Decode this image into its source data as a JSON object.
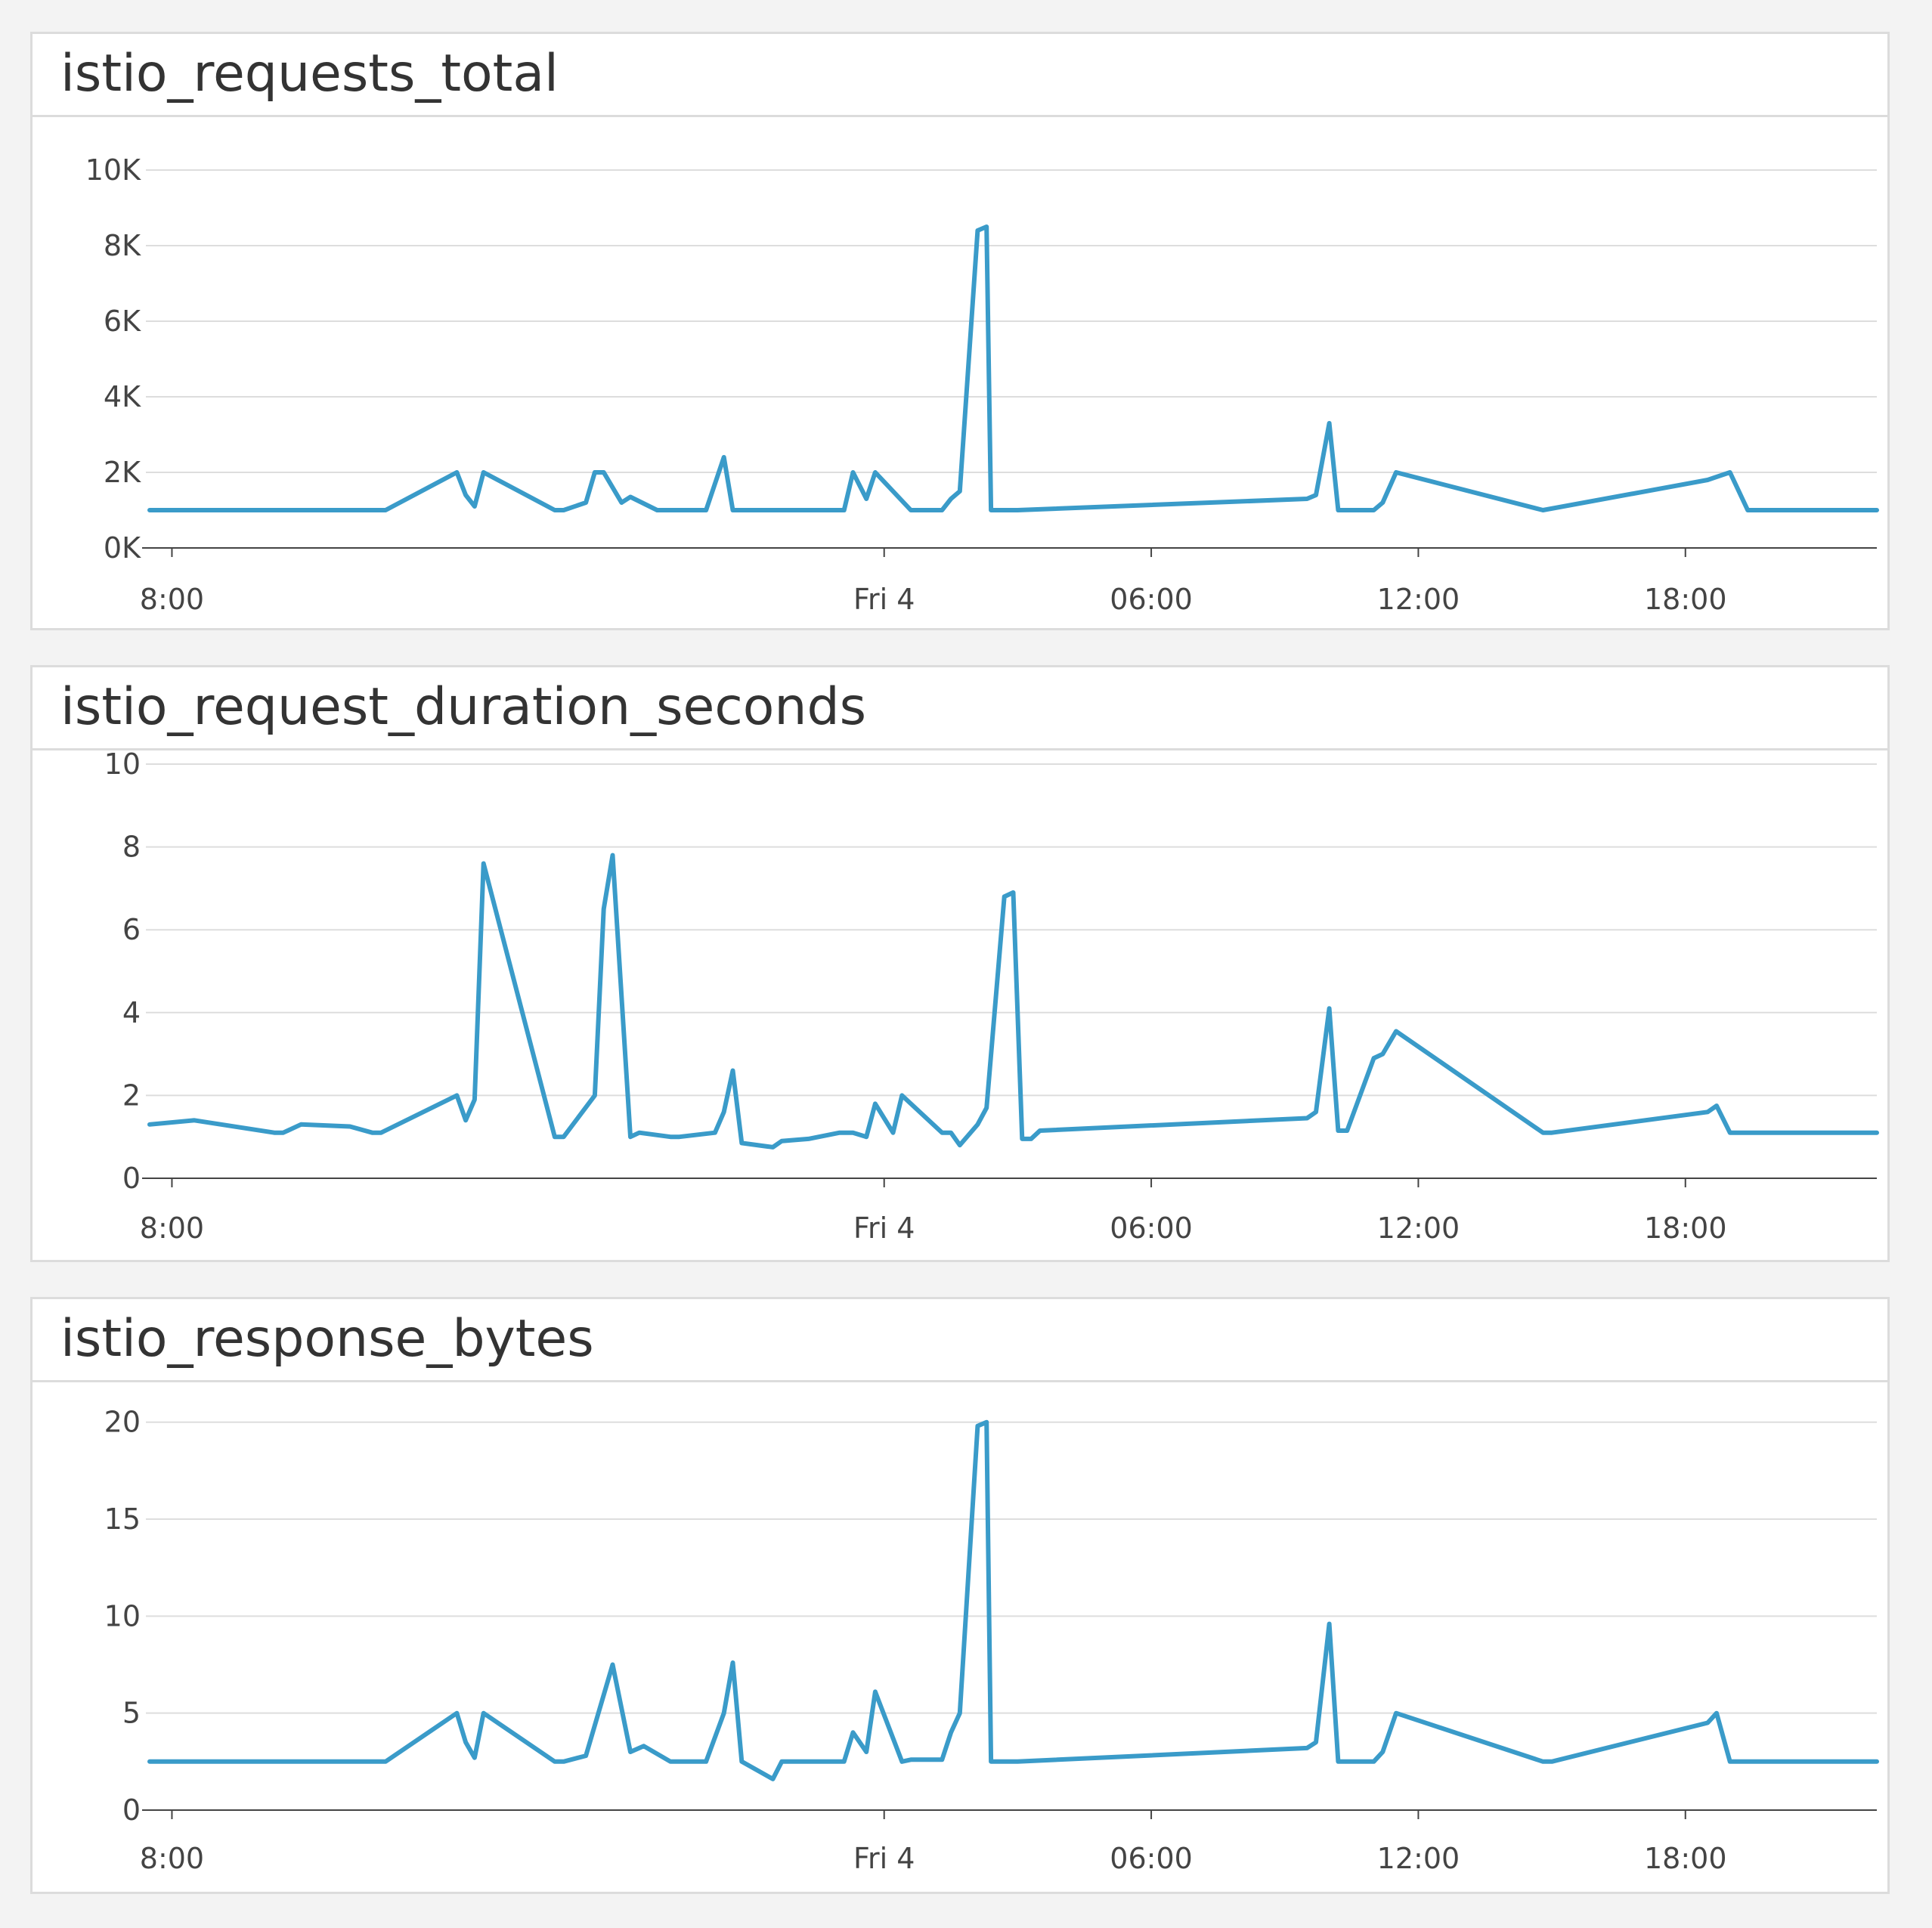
{
  "colors": {
    "line": "#3a9bc9",
    "grid": "#dddddd",
    "axis": "#444444",
    "text": "#333333"
  },
  "chart_data": [
    {
      "type": "line",
      "title": "istio_requests_total",
      "x_tick_labels": [
        "8:00",
        "Fri 4",
        "06:00",
        "12:00",
        "18:00"
      ],
      "x_tick_hours": [
        8,
        24,
        30,
        36,
        42
      ],
      "x_range_hours": [
        7.5,
        46.3
      ],
      "y_tick_labels": [
        "0K",
        "2K",
        "4K",
        "6K",
        "8K",
        "10K"
      ],
      "y_tick_values": [
        0,
        2000,
        4000,
        6000,
        8000,
        10000
      ],
      "ylim": [
        0,
        10000
      ],
      "grid": true,
      "legend": "none",
      "series": [
        {
          "values": [
            [
              7.5,
              1000
            ],
            [
              12.8,
              1000
            ],
            [
              14.4,
              2000
            ],
            [
              14.6,
              1400
            ],
            [
              14.8,
              1100
            ],
            [
              15.0,
              2000
            ],
            [
              16.6,
              1000
            ],
            [
              16.8,
              1000
            ],
            [
              17.3,
              1200
            ],
            [
              17.5,
              2000
            ],
            [
              17.7,
              2000
            ],
            [
              18.1,
              1200
            ],
            [
              18.3,
              1350
            ],
            [
              18.9,
              1000
            ],
            [
              20.0,
              1000
            ],
            [
              20.4,
              2400
            ],
            [
              20.6,
              1000
            ],
            [
              23.1,
              1000
            ],
            [
              23.3,
              2000
            ],
            [
              23.6,
              1300
            ],
            [
              23.8,
              2000
            ],
            [
              24.6,
              1000
            ],
            [
              25.3,
              1000
            ],
            [
              25.5,
              1300
            ],
            [
              25.7,
              1500
            ],
            [
              26.1,
              8400
            ],
            [
              26.3,
              8500
            ],
            [
              26.4,
              1000
            ],
            [
              27.0,
              1000
            ],
            [
              33.5,
              1300
            ],
            [
              33.7,
              1400
            ],
            [
              34.0,
              3300
            ],
            [
              34.2,
              1000
            ],
            [
              35.0,
              1000
            ],
            [
              35.2,
              1200
            ],
            [
              35.5,
              2000
            ],
            [
              38.8,
              1000
            ],
            [
              42.5,
              1800
            ],
            [
              43.0,
              2000
            ],
            [
              43.4,
              1000
            ],
            [
              46.3,
              1000
            ]
          ]
        }
      ]
    },
    {
      "type": "line",
      "title": "istio_request_duration_seconds",
      "x_tick_labels": [
        "8:00",
        "Fri 4",
        "06:00",
        "12:00",
        "18:00"
      ],
      "x_tick_hours": [
        8,
        24,
        30,
        36,
        42
      ],
      "x_range_hours": [
        7.5,
        46.3
      ],
      "y_tick_labels": [
        "0",
        "2",
        "4",
        "6",
        "8",
        "10"
      ],
      "y_tick_values": [
        0,
        2,
        4,
        6,
        8,
        10
      ],
      "ylim": [
        0,
        10
      ],
      "grid": true,
      "legend": "none",
      "series": [
        {
          "values": [
            [
              7.5,
              1.3
            ],
            [
              8.5,
              1.4
            ],
            [
              10.3,
              1.1
            ],
            [
              10.5,
              1.1
            ],
            [
              10.9,
              1.3
            ],
            [
              12.0,
              1.25
            ],
            [
              12.5,
              1.1
            ],
            [
              12.7,
              1.1
            ],
            [
              14.4,
              2.0
            ],
            [
              14.6,
              1.4
            ],
            [
              14.8,
              1.9
            ],
            [
              15.0,
              7.6
            ],
            [
              16.6,
              1.0
            ],
            [
              16.8,
              1.0
            ],
            [
              17.5,
              2.0
            ],
            [
              17.7,
              6.5
            ],
            [
              17.9,
              7.8
            ],
            [
              18.3,
              1.0
            ],
            [
              18.5,
              1.1
            ],
            [
              19.2,
              1.0
            ],
            [
              19.4,
              1.0
            ],
            [
              20.2,
              1.1
            ],
            [
              20.4,
              1.6
            ],
            [
              20.6,
              2.6
            ],
            [
              20.8,
              0.85
            ],
            [
              21.5,
              0.75
            ],
            [
              21.7,
              0.9
            ],
            [
              22.3,
              0.95
            ],
            [
              23.0,
              1.1
            ],
            [
              23.3,
              1.1
            ],
            [
              23.6,
              1.0
            ],
            [
              23.8,
              1.8
            ],
            [
              24.2,
              1.1
            ],
            [
              24.4,
              2.0
            ],
            [
              25.3,
              1.1
            ],
            [
              25.5,
              1.1
            ],
            [
              25.7,
              0.8
            ],
            [
              26.1,
              1.3
            ],
            [
              26.3,
              1.7
            ],
            [
              26.7,
              6.8
            ],
            [
              26.9,
              6.9
            ],
            [
              27.1,
              0.95
            ],
            [
              27.3,
              0.95
            ],
            [
              27.5,
              1.15
            ],
            [
              33.5,
              1.45
            ],
            [
              33.7,
              1.6
            ],
            [
              34.0,
              4.1
            ],
            [
              34.2,
              1.15
            ],
            [
              34.4,
              1.15
            ],
            [
              35.0,
              2.9
            ],
            [
              35.2,
              3.0
            ],
            [
              35.5,
              3.55
            ],
            [
              38.8,
              1.1
            ],
            [
              39.0,
              1.1
            ],
            [
              42.5,
              1.6
            ],
            [
              42.7,
              1.75
            ],
            [
              43.0,
              1.1
            ],
            [
              46.3,
              1.1
            ]
          ]
        }
      ]
    },
    {
      "type": "line",
      "title": "istio_response_bytes",
      "x_tick_labels": [
        "8:00",
        "Fri 4",
        "06:00",
        "12:00",
        "18:00"
      ],
      "x_tick_hours": [
        8,
        24,
        30,
        36,
        42
      ],
      "x_range_hours": [
        7.5,
        46.3
      ],
      "y_tick_labels": [
        "0",
        "5",
        "10",
        "15",
        "20"
      ],
      "y_tick_values": [
        0,
        5,
        10,
        15,
        20
      ],
      "ylim": [
        0,
        20
      ],
      "grid": true,
      "legend": "none",
      "series": [
        {
          "values": [
            [
              7.5,
              2.5
            ],
            [
              11.5,
              2.5
            ],
            [
              12.6,
              2.5
            ],
            [
              12.8,
              2.5
            ],
            [
              14.4,
              5.0
            ],
            [
              14.6,
              3.5
            ],
            [
              14.8,
              2.7
            ],
            [
              15.0,
              5.0
            ],
            [
              16.6,
              2.5
            ],
            [
              16.8,
              2.5
            ],
            [
              17.3,
              2.8
            ],
            [
              17.9,
              7.5
            ],
            [
              18.3,
              3.0
            ],
            [
              18.6,
              3.3
            ],
            [
              19.2,
              2.5
            ],
            [
              20.0,
              2.5
            ],
            [
              20.4,
              5.0
            ],
            [
              20.6,
              7.6
            ],
            [
              20.8,
              2.5
            ],
            [
              21.5,
              1.6
            ],
            [
              21.7,
              2.5
            ],
            [
              23.1,
              2.5
            ],
            [
              23.3,
              4.0
            ],
            [
              23.6,
              3.0
            ],
            [
              23.8,
              6.1
            ],
            [
              24.4,
              2.5
            ],
            [
              24.6,
              2.6
            ],
            [
              25.3,
              2.6
            ],
            [
              25.5,
              4.0
            ],
            [
              25.7,
              5.0
            ],
            [
              26.1,
              19.8
            ],
            [
              26.3,
              20.0
            ],
            [
              26.4,
              2.5
            ],
            [
              27.0,
              2.5
            ],
            [
              33.5,
              3.2
            ],
            [
              33.7,
              3.5
            ],
            [
              34.0,
              9.6
            ],
            [
              34.2,
              2.5
            ],
            [
              35.0,
              2.5
            ],
            [
              35.2,
              3.0
            ],
            [
              35.5,
              5.0
            ],
            [
              38.8,
              2.5
            ],
            [
              39.0,
              2.5
            ],
            [
              42.5,
              4.5
            ],
            [
              42.7,
              5.0
            ],
            [
              43.0,
              2.5
            ],
            [
              46.3,
              2.5
            ]
          ]
        }
      ]
    }
  ]
}
